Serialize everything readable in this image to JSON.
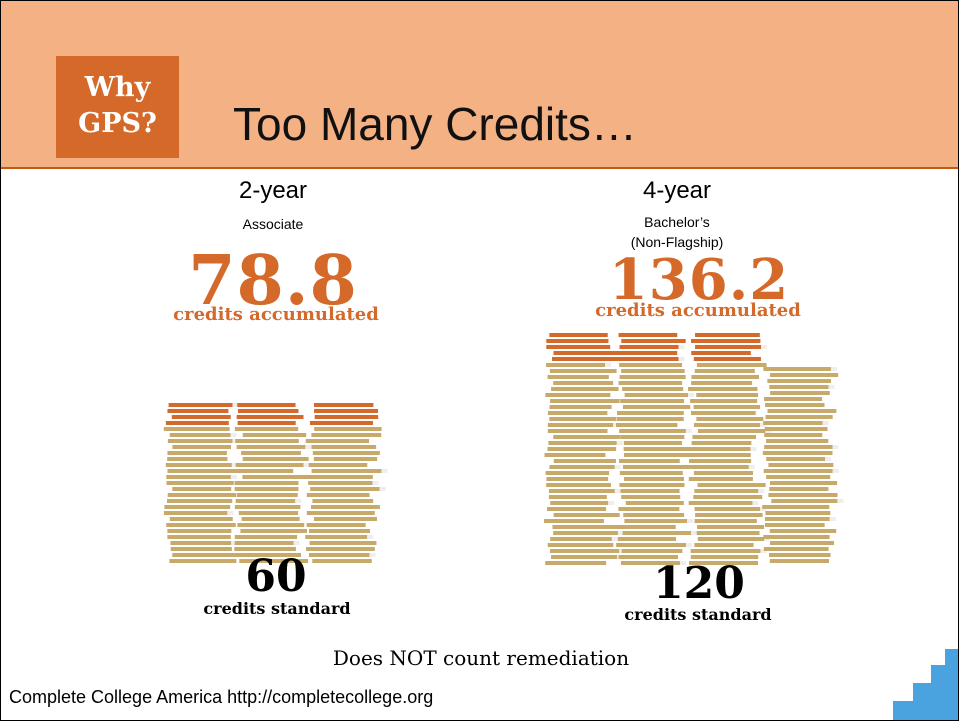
{
  "header": {
    "badge": [
      "Why",
      "GPS?"
    ],
    "title": "Too Many Credits…"
  },
  "columns": [
    {
      "label": "2-year",
      "sublabel": [
        "Associate"
      ],
      "accumulated": "78.8",
      "accumulated_caption": "credits accumulated",
      "standard": "60",
      "standard_caption": "credits standard"
    },
    {
      "label": "4-year",
      "sublabel": [
        "Bachelor’s",
        "(Non-Flagship)"
      ],
      "accumulated": "136.2",
      "accumulated_caption": "credits accumulated",
      "standard": "120",
      "standard_caption": "credits standard"
    }
  ],
  "note": "Does NOT count remediation",
  "source": "Complete College America http://completecollege.org"
}
